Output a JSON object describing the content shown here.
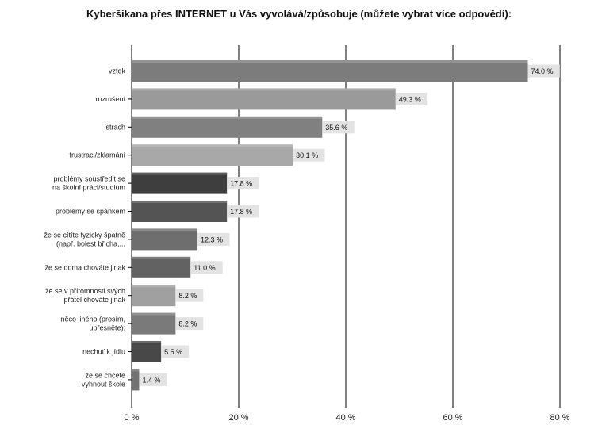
{
  "chart_data": {
    "type": "bar",
    "orientation": "horizontal",
    "title": "Kyberšikana přes INTERNET u Vás vyvolává/způsobuje (můžete vybrat více odpovědí):",
    "categories": [
      [
        "vztek"
      ],
      [
        "rozrušení"
      ],
      [
        "strach"
      ],
      [
        "frustraci/zklamání"
      ],
      [
        "problémy soustředit se",
        "na školní práci/studium"
      ],
      [
        "problémy se spánkem"
      ],
      [
        "že se cítíte fyzicky špatně",
        "(např. bolest břicha,..."
      ],
      [
        "že se doma chováte jinak"
      ],
      [
        "že se v přítomnosti svých",
        "přátel chováte jinak"
      ],
      [
        "něco jiného (prosím,",
        "upřesněte):"
      ],
      [
        "nechuť k jídlu"
      ],
      [
        "že se chcete",
        "vyhnout škole"
      ]
    ],
    "values": [
      74.0,
      49.3,
      35.6,
      30.1,
      17.8,
      17.8,
      12.3,
      11.0,
      8.2,
      8.2,
      5.5,
      1.4
    ],
    "value_labels": [
      "74.0 %",
      "49.3 %",
      "35.6 %",
      "30.1 %",
      "17.8 %",
      "17.8 %",
      "12.3 %",
      "11.0 %",
      "8.2 %",
      "8.2 %",
      "5.5 %",
      "1.4 %"
    ],
    "bar_colors": [
      "#7c7c7c",
      "#9a9a9a",
      "#808080",
      "#a8a8a8",
      "#3e3e3e",
      "#545454",
      "#6e6e6e",
      "#626262",
      "#a0a0a0",
      "#7a7a7a",
      "#484848",
      "#727272"
    ],
    "xticks": [
      0,
      20,
      40,
      60,
      80
    ],
    "xtick_labels": [
      "0 %",
      "20 %",
      "40 %",
      "60 %",
      "80 %"
    ],
    "xlim": [
      0,
      80
    ],
    "grid": true,
    "value_label_bg": "#e3e3e3"
  }
}
